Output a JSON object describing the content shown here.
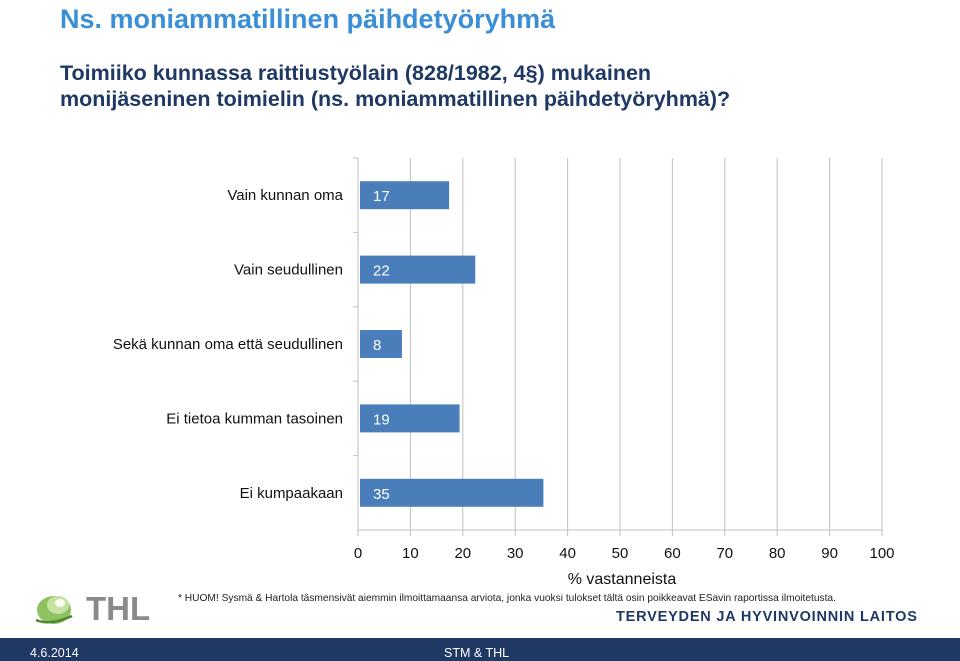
{
  "slide": {
    "title": "Ns. moniammatillinen päihdetyöryhmä",
    "question_line1": "Toimiiko kunnassa raittiustyölain (828/1982, 4§) mukainen",
    "question_line2": "monijäseninen toimielin (ns. moniammatillinen päihdetyöryhmä)?",
    "note": "* HUOM! Sysmä & Hartola täsmensivät aiemmin ilmoittamaansa arviota, jonka vuoksi tulokset tältä osin poikkeavat ESavin raportissa ilmoitetusta."
  },
  "logo": {
    "text": "THL",
    "org_name": "TERVEYDEN JA HYVINVOINNIN LAITOS",
    "icon": "thl-leaf-icon",
    "color_green": "#7ab648",
    "color_gray": "#8a8a8a"
  },
  "footer": {
    "date": "4.6.2014",
    "org": "STM & THL",
    "background": "#1f3864"
  },
  "chart_data": {
    "type": "bar",
    "orientation": "horizontal",
    "categories": [
      "Vain kunnan oma",
      "Vain seudullinen",
      "Sekä kunnan oma että seudullinen",
      "Ei tietoa kumman tasoinen",
      "Ei kumpaakaan"
    ],
    "values": [
      17,
      22,
      8,
      19,
      35
    ],
    "xlabel": "% vastanneista",
    "ylabel": "",
    "xlim": [
      0,
      100
    ],
    "xticks": [
      0,
      10,
      20,
      30,
      40,
      50,
      60,
      70,
      80,
      90,
      100
    ],
    "grid": true,
    "data_labels": true,
    "bar_color": "#4a7ebb",
    "grid_color": "#bfbfbf"
  }
}
